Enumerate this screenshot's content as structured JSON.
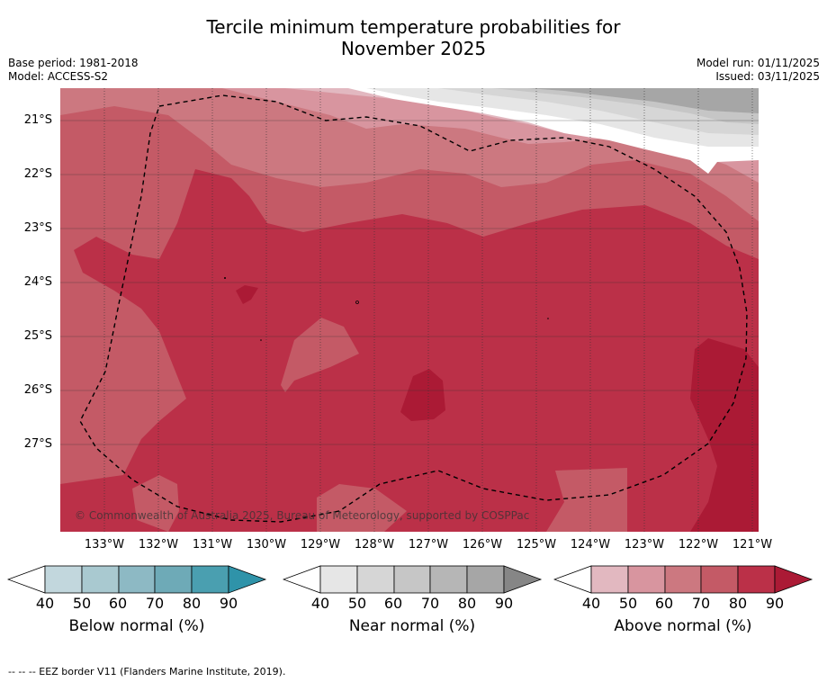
{
  "title_line1": "Tercile minimum temperature probabilities for",
  "title_line2": "November 2025",
  "base_period": "Base period: 1981-2018",
  "model": "Model: ACCESS-S2",
  "model_run": "Model run: 01/11/2025",
  "issued": "Issued: 03/11/2025",
  "latitudes": [
    "21°S",
    "22°S",
    "23°S",
    "24°S",
    "25°S",
    "26°S",
    "27°S"
  ],
  "longitudes": [
    "133°W",
    "132°W",
    "131°W",
    "130°W",
    "129°W",
    "128°W",
    "127°W",
    "126°W",
    "125°W",
    "124°W",
    "123°W",
    "122°W",
    "121°W"
  ],
  "copyright": "© Commonwealth of Australia 2025, Bureau of Meteorology, supported by COSPPac",
  "colorbars": [
    {
      "label": "Below normal (%)",
      "ticks": [
        "40",
        "50",
        "60",
        "70",
        "80",
        "90"
      ],
      "colors": [
        "#c2d7dd",
        "#a9c9d0",
        "#8db9c4",
        "#6eaab7",
        "#4a9fb0",
        "#2f93a9"
      ]
    },
    {
      "label": "Near normal (%)",
      "ticks": [
        "40",
        "50",
        "60",
        "70",
        "80",
        "90"
      ],
      "colors": [
        "#e6e6e6",
        "#d6d6d6",
        "#c6c6c6",
        "#b6b6b6",
        "#a6a6a6",
        "#868686"
      ]
    },
    {
      "label": "Above normal (%)",
      "ticks": [
        "40",
        "50",
        "60",
        "70",
        "80",
        "90"
      ],
      "colors": [
        "#e2b8c0",
        "#d8959f",
        "#cc7880",
        "#c45a66",
        "#bb3048",
        "#ab1a35"
      ]
    }
  ],
  "footnote": "--  --  -- EEZ border V11 (Flanders Marine Institute, 2019)."
}
